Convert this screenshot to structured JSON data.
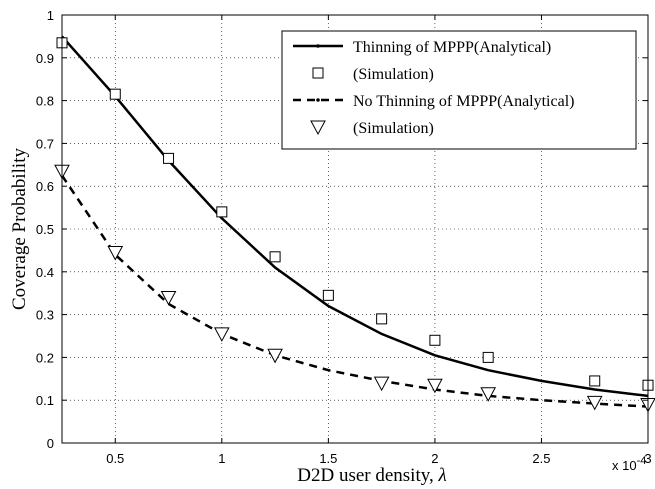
{
  "chart_data": {
    "type": "line",
    "xlabel": "D2D user density, ",
    "xlabel_symbol": "λ",
    "ylabel": "Coverage Probability",
    "x_multiplier_text": "x 10",
    "x_multiplier_exp": "-4",
    "xlim": [
      0.25,
      3
    ],
    "ylim": [
      0,
      1
    ],
    "xticks": [
      "0.5",
      "1",
      "1.5",
      "2",
      "2.5",
      "3"
    ],
    "yticks": [
      "0",
      "0.1",
      "0.2",
      "0.3",
      "0.4",
      "0.5",
      "0.6",
      "0.7",
      "0.8",
      "0.9",
      "1"
    ],
    "grid": true,
    "legend_position": "top-right",
    "series": [
      {
        "name": "Thinning of MPPP(Analytical)",
        "style": "solid-line",
        "color": "#000000",
        "x": [
          0.25,
          0.5,
          0.75,
          1.0,
          1.25,
          1.5,
          1.75,
          2.0,
          2.25,
          2.5,
          2.75,
          3.0
        ],
        "y": [
          0.95,
          0.81,
          0.66,
          0.525,
          0.41,
          0.32,
          0.255,
          0.205,
          0.17,
          0.145,
          0.125,
          0.11
        ]
      },
      {
        "name": "(Simulation)",
        "style": "square-markers",
        "color": "#000000",
        "x": [
          0.25,
          0.5,
          0.75,
          1.0,
          1.25,
          1.5,
          1.75,
          2.0,
          2.25,
          2.75,
          3.0
        ],
        "y": [
          0.935,
          0.815,
          0.665,
          0.54,
          0.435,
          0.345,
          0.29,
          0.24,
          0.2,
          0.145,
          0.135
        ]
      },
      {
        "name": "No Thinning of MPPP(Analytical)",
        "style": "dashed-line",
        "color": "#000000",
        "x": [
          0.25,
          0.5,
          0.75,
          1.0,
          1.25,
          1.5,
          1.75,
          2.0,
          2.25,
          2.5,
          2.75,
          3.0
        ],
        "y": [
          0.625,
          0.44,
          0.325,
          0.255,
          0.205,
          0.17,
          0.145,
          0.125,
          0.11,
          0.1,
          0.092,
          0.085
        ]
      },
      {
        "name": "(Simulation)",
        "style": "triangle-markers",
        "color": "#000000",
        "x": [
          0.25,
          0.5,
          0.75,
          1.0,
          1.25,
          1.75,
          2.0,
          2.25,
          2.75,
          3.0
        ],
        "y": [
          0.635,
          0.445,
          0.34,
          0.255,
          0.205,
          0.14,
          0.135,
          0.115,
          0.095,
          0.09
        ]
      }
    ]
  }
}
